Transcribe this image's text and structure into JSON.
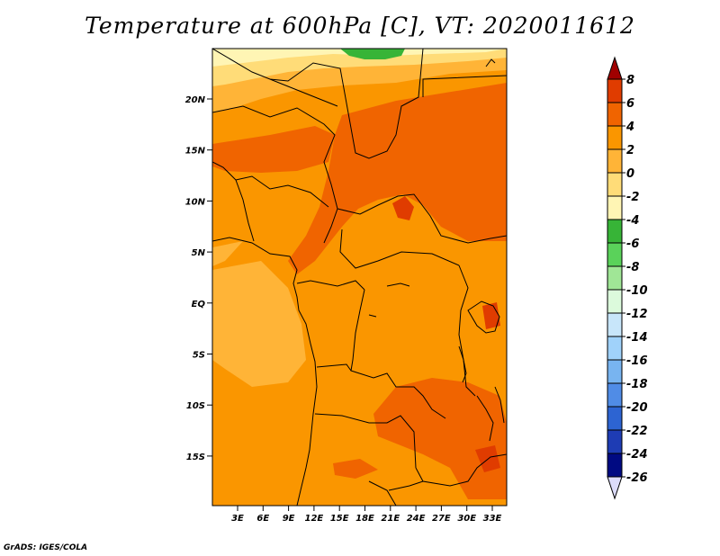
{
  "title": "Temperature at 600hPa [C], VT: 2020011612",
  "credit": "GrADS: IGES/COLA",
  "map": {
    "lat_labels": [
      "20N",
      "15N",
      "10N",
      "5N",
      "EQ",
      "5S",
      "10S",
      "15S"
    ],
    "lon_labels": [
      "3E",
      "6E",
      "9E",
      "12E",
      "15E",
      "18E",
      "21E",
      "24E",
      "27E",
      "30E",
      "33E"
    ]
  },
  "colorbar": {
    "labels": [
      "8",
      "6",
      "4",
      "2",
      "0",
      "-2",
      "-4",
      "-6",
      "-8",
      "-10",
      "-12",
      "-14",
      "-16",
      "-18",
      "-20",
      "-22",
      "-24",
      "-26"
    ],
    "colors": [
      "#a00000",
      "#e03c00",
      "#f06400",
      "#fa9600",
      "#ffb437",
      "#ffdc78",
      "#fff5b4",
      "#37b437",
      "#5ad25a",
      "#a0e696",
      "#dcfadc",
      "#c8e6fa",
      "#a0d2fa",
      "#78b4f0",
      "#508ce6",
      "#2d64d2",
      "#1e3cb4",
      "#000a82",
      "#dcdcfa"
    ]
  }
}
